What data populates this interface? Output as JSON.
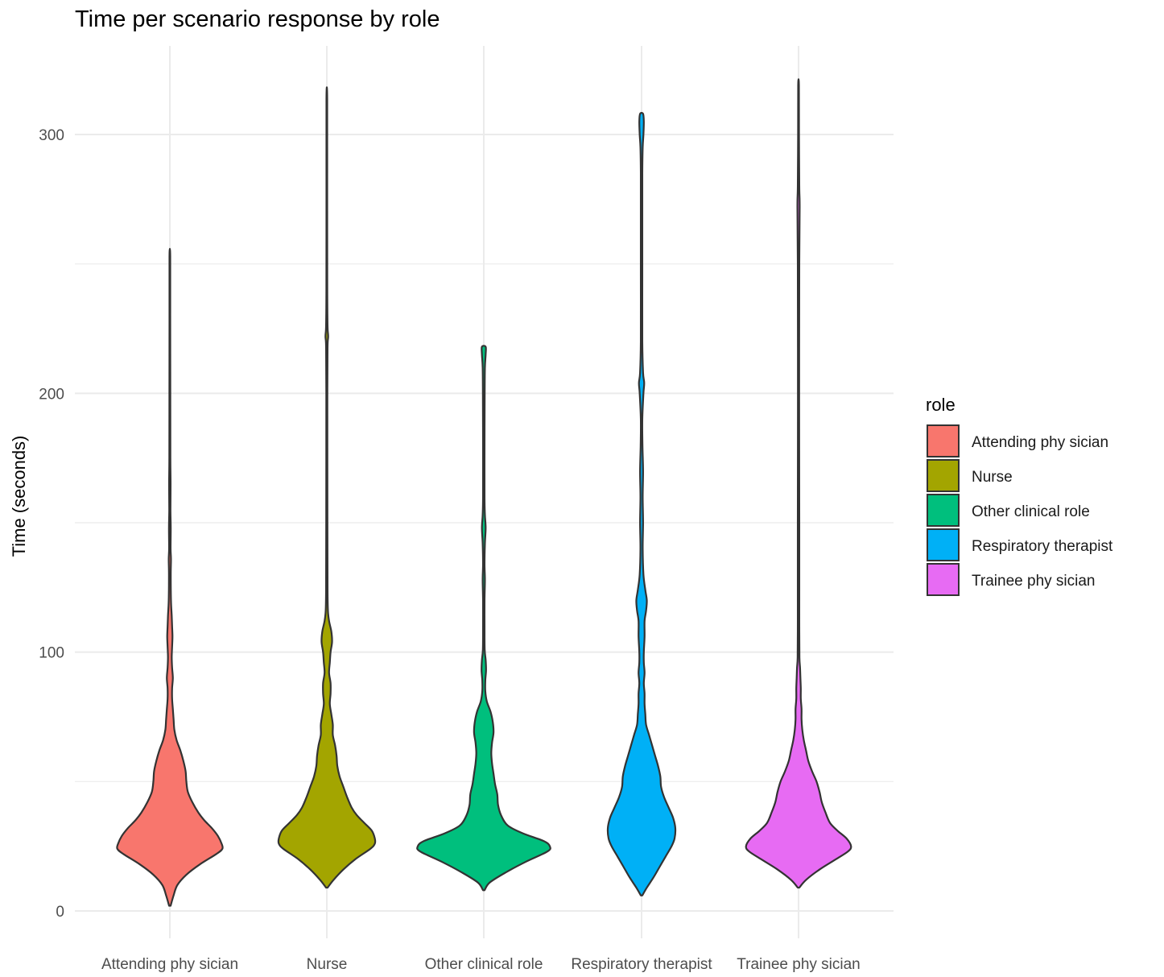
{
  "chart_data": {
    "type": "violin",
    "title": "Time per scenario response by role",
    "xlabel": "",
    "ylabel": "Time (seconds)",
    "ylim": [
      -8,
      335
    ],
    "y_ticks": [
      0,
      100,
      200,
      300
    ],
    "categories": [
      "Attending phy sician",
      "Nurse",
      "Other clinical role",
      "Respiratory  therapist",
      "Trainee phy sician"
    ],
    "legend": {
      "title": "role",
      "position": "right",
      "entries": [
        "Attending phy sician",
        "Nurse",
        "Other clinical role",
        "Respiratory  therapist",
        "Trainee phy sician"
      ]
    },
    "colors": [
      "#F8766D",
      "#A3A500",
      "#00BF7D",
      "#00B0F6",
      "#E76BF3"
    ],
    "grid": true,
    "series": [
      {
        "category": "Attending phy sician",
        "min": 2,
        "max": 253,
        "profile": [
          [
            2,
            1
          ],
          [
            6,
            5
          ],
          [
            10,
            10
          ],
          [
            14,
            22
          ],
          [
            18,
            40
          ],
          [
            22,
            62
          ],
          [
            24,
            70
          ],
          [
            26,
            69
          ],
          [
            29,
            64
          ],
          [
            32,
            56
          ],
          [
            35,
            46
          ],
          [
            38,
            38
          ],
          [
            42,
            30
          ],
          [
            46,
            24
          ],
          [
            50,
            22
          ],
          [
            54,
            21
          ],
          [
            58,
            18
          ],
          [
            62,
            14
          ],
          [
            66,
            9
          ],
          [
            70,
            6
          ],
          [
            74,
            5
          ],
          [
            78,
            4
          ],
          [
            82,
            3
          ],
          [
            86,
            3
          ],
          [
            90,
            4
          ],
          [
            94,
            3
          ],
          [
            98,
            2.5
          ],
          [
            102,
            3
          ],
          [
            106,
            3.5
          ],
          [
            110,
            3
          ],
          [
            114,
            2.5
          ],
          [
            120,
            1.5
          ],
          [
            130,
            1.2
          ],
          [
            136,
            1.5
          ],
          [
            140,
            1
          ],
          [
            148,
            1.2
          ],
          [
            155,
            0.8
          ],
          [
            165,
            1
          ],
          [
            175,
            0.7
          ],
          [
            200,
            0.6
          ],
          [
            230,
            0.5
          ],
          [
            253,
            0.5
          ]
        ]
      },
      {
        "category": "Nurse",
        "min": 9,
        "max": 314,
        "profile": [
          [
            9,
            1
          ],
          [
            12,
            9
          ],
          [
            16,
            22
          ],
          [
            20,
            38
          ],
          [
            24,
            58
          ],
          [
            26,
            64
          ],
          [
            28,
            64
          ],
          [
            31,
            60
          ],
          [
            34,
            50
          ],
          [
            37,
            40
          ],
          [
            40,
            33
          ],
          [
            44,
            27
          ],
          [
            48,
            22
          ],
          [
            52,
            17
          ],
          [
            56,
            14
          ],
          [
            60,
            13
          ],
          [
            64,
            11
          ],
          [
            68,
            8
          ],
          [
            72,
            8
          ],
          [
            76,
            6
          ],
          [
            80,
            4
          ],
          [
            84,
            5
          ],
          [
            88,
            5
          ],
          [
            92,
            3
          ],
          [
            96,
            4
          ],
          [
            100,
            5
          ],
          [
            104,
            7
          ],
          [
            108,
            6
          ],
          [
            112,
            3
          ],
          [
            116,
            1.5
          ],
          [
            124,
            1
          ],
          [
            150,
            0.8
          ],
          [
            200,
            0.7
          ],
          [
            218,
            1
          ],
          [
            222,
            1.8
          ],
          [
            226,
            1
          ],
          [
            240,
            0.6
          ],
          [
            280,
            0.5
          ],
          [
            314,
            0.5
          ]
        ]
      },
      {
        "category": "Other clinical role",
        "min": 8,
        "max": 218,
        "profile": [
          [
            8,
            1
          ],
          [
            11,
            8
          ],
          [
            15,
            30
          ],
          [
            19,
            56
          ],
          [
            23,
            85
          ],
          [
            25,
            88
          ],
          [
            27,
            80
          ],
          [
            30,
            52
          ],
          [
            33,
            32
          ],
          [
            37,
            23
          ],
          [
            41,
            19
          ],
          [
            45,
            18
          ],
          [
            49,
            15
          ],
          [
            53,
            13
          ],
          [
            57,
            11
          ],
          [
            61,
            10
          ],
          [
            65,
            11
          ],
          [
            69,
            13
          ],
          [
            73,
            12
          ],
          [
            77,
            9
          ],
          [
            81,
            4
          ],
          [
            85,
            2
          ],
          [
            89,
            2
          ],
          [
            93,
            3
          ],
          [
            97,
            2.5
          ],
          [
            101,
            1.2
          ],
          [
            110,
            1
          ],
          [
            120,
            1
          ],
          [
            128,
            1.5
          ],
          [
            134,
            1
          ],
          [
            142,
            1.5
          ],
          [
            148,
            2.5
          ],
          [
            153,
            1.5
          ],
          [
            160,
            1
          ],
          [
            180,
            1
          ],
          [
            200,
            1.2
          ],
          [
            210,
            1.5
          ],
          [
            215,
            2.5
          ],
          [
            218,
            2.5
          ]
        ]
      },
      {
        "category": "Respiratory  therapist",
        "min": 6,
        "max": 308,
        "profile": [
          [
            6,
            1
          ],
          [
            9,
            7
          ],
          [
            13,
            16
          ],
          [
            17,
            24
          ],
          [
            21,
            32
          ],
          [
            25,
            40
          ],
          [
            28,
            44
          ],
          [
            32,
            45
          ],
          [
            36,
            42
          ],
          [
            40,
            36
          ],
          [
            44,
            30
          ],
          [
            48,
            26
          ],
          [
            52,
            25
          ],
          [
            56,
            22
          ],
          [
            60,
            18
          ],
          [
            64,
            14
          ],
          [
            68,
            10
          ],
          [
            72,
            6
          ],
          [
            76,
            5
          ],
          [
            80,
            4
          ],
          [
            84,
            4
          ],
          [
            88,
            3
          ],
          [
            92,
            4
          ],
          [
            96,
            3
          ],
          [
            100,
            3
          ],
          [
            106,
            4
          ],
          [
            112,
            4
          ],
          [
            116,
            6
          ],
          [
            120,
            7
          ],
          [
            124,
            5
          ],
          [
            130,
            2.5
          ],
          [
            140,
            1.5
          ],
          [
            150,
            2
          ],
          [
            160,
            1.5
          ],
          [
            170,
            2
          ],
          [
            180,
            1.2
          ],
          [
            190,
            1
          ],
          [
            200,
            2.5
          ],
          [
            204,
            3.5
          ],
          [
            208,
            2
          ],
          [
            220,
            1
          ],
          [
            245,
            1
          ],
          [
            270,
            1
          ],
          [
            285,
            1
          ],
          [
            295,
            1.5
          ],
          [
            300,
            2.5
          ],
          [
            305,
            3
          ],
          [
            308,
            2
          ]
        ]
      },
      {
        "category": "Trainee phy sician",
        "min": 9,
        "max": 319,
        "profile": [
          [
            9,
            1
          ],
          [
            12,
            10
          ],
          [
            16,
            28
          ],
          [
            20,
            50
          ],
          [
            23,
            66
          ],
          [
            25,
            70
          ],
          [
            28,
            64
          ],
          [
            31,
            52
          ],
          [
            34,
            42
          ],
          [
            38,
            36
          ],
          [
            42,
            31
          ],
          [
            46,
            28
          ],
          [
            50,
            24
          ],
          [
            54,
            18
          ],
          [
            58,
            13
          ],
          [
            62,
            10
          ],
          [
            66,
            7
          ],
          [
            70,
            5
          ],
          [
            74,
            4
          ],
          [
            78,
            4
          ],
          [
            82,
            3
          ],
          [
            86,
            3
          ],
          [
            90,
            2.5
          ],
          [
            94,
            2
          ],
          [
            98,
            1.2
          ],
          [
            110,
            1
          ],
          [
            125,
            1
          ],
          [
            150,
            1
          ],
          [
            200,
            0.8
          ],
          [
            250,
            1
          ],
          [
            272,
            1.5
          ],
          [
            280,
            1
          ],
          [
            300,
            0.6
          ],
          [
            319,
            0.5
          ]
        ]
      }
    ]
  }
}
